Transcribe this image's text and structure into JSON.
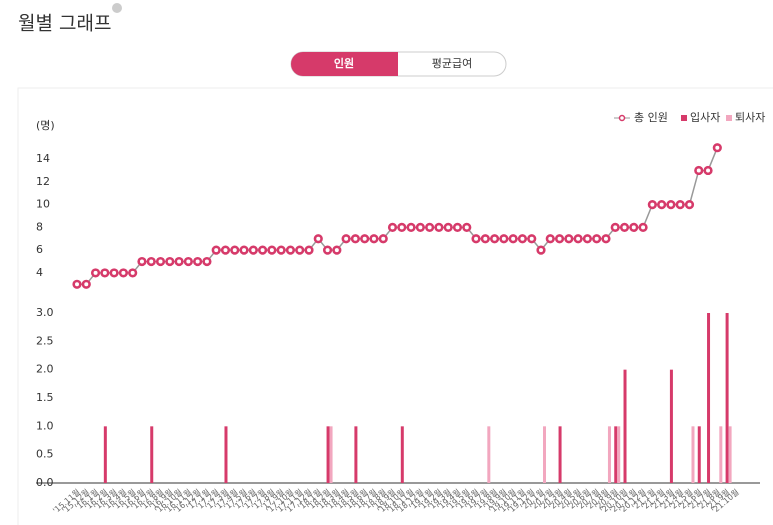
{
  "header": {
    "title": "월별 그래프"
  },
  "tabs": [
    "인원",
    "평균급여"
  ],
  "chart_data": [
    {
      "type": "line",
      "y_label": "(명)",
      "series": [
        {
          "name": "총 인원",
          "color": "#d63a6a",
          "line_color": "#999999",
          "values": [
            3,
            3,
            4,
            4,
            4,
            4,
            4,
            5,
            5,
            5,
            5,
            5,
            5,
            5,
            5,
            6,
            6,
            6,
            6,
            6,
            6,
            6,
            6,
            6,
            6,
            6,
            7,
            6,
            6,
            7,
            7,
            7,
            7,
            7,
            8,
            8,
            8,
            8,
            8,
            8,
            8,
            8,
            8,
            7,
            7,
            7,
            7,
            7,
            7,
            7,
            6,
            7,
            7,
            7,
            7,
            7,
            7,
            7,
            8,
            8,
            8,
            8,
            10,
            10,
            10,
            10,
            10,
            13,
            13,
            15
          ]
        }
      ],
      "ylim": [
        2.5,
        15.5
      ],
      "yticks": [
        4,
        6,
        8,
        10,
        12,
        14
      ]
    },
    {
      "type": "bar",
      "categories": [
        "'15.11월",
        "'15.12월",
        "'16.1월",
        "'16.2월",
        "'16.3월",
        "'16.4월",
        "'16.5월",
        "'16.6월",
        "'16.7월",
        "'16.8월",
        "'16.9월",
        "'16.10월",
        "'16.11월",
        "'16.12월",
        "'17.1월",
        "'17.2월",
        "'17.3월",
        "'17.4월",
        "'17.5월",
        "'17.6월",
        "'17.7월",
        "'17.8월",
        "'17.9월",
        "'17.10월",
        "'17.11월",
        "'17.12월",
        "'18.1월",
        "'18.2월",
        "'18.3월",
        "'18.4월",
        "'18.5월",
        "'18.6월",
        "'18.7월",
        "'18.8월",
        "'18.9월",
        "'18.10월",
        "'18.11월",
        "'18.12월",
        "'19.1월",
        "'19.2월",
        "'19.3월",
        "'19.4월",
        "'19.5월",
        "'19.6월",
        "'19.7월",
        "'19.8월",
        "'19.9월",
        "'19.10월",
        "'19.11월",
        "'19.12월",
        "'20.1월",
        "'20.2월",
        "'20.3월",
        "'20.4월",
        "'20.5월",
        "'20.6월",
        "'20.7월",
        "'20.8월",
        "'20.9월",
        "'20.10월",
        "'20.11월",
        "'20.12월",
        "'21.1월",
        "'21.2월",
        "'21.3월",
        "'21.4월",
        "'21.5월",
        "'21.6월",
        "'21.7월",
        "'21.8월",
        "'21.9월",
        "'21.10월"
      ],
      "series": [
        {
          "name": "입사자",
          "color": "#d63a6a",
          "values": [
            0,
            0,
            0,
            1,
            0,
            0,
            0,
            0,
            1,
            0,
            0,
            0,
            0,
            0,
            0,
            0,
            1,
            0,
            0,
            0,
            0,
            0,
            0,
            0,
            0,
            0,
            0,
            1,
            0,
            0,
            1,
            0,
            0,
            0,
            0,
            1,
            0,
            0,
            0,
            0,
            0,
            0,
            0,
            0,
            0,
            0,
            0,
            0,
            0,
            0,
            0,
            0,
            1,
            0,
            0,
            0,
            0,
            0,
            1,
            2,
            0,
            0,
            0,
            0,
            2,
            0,
            0,
            1,
            3,
            0,
            3,
            0
          ]
        },
        {
          "name": "퇴사자",
          "color": "#f2a7bf",
          "values": [
            0,
            0,
            0,
            0,
            0,
            0,
            0,
            0,
            0,
            0,
            0,
            0,
            0,
            0,
            0,
            0,
            0,
            0,
            0,
            0,
            0,
            0,
            0,
            0,
            0,
            0,
            0,
            1,
            0,
            0,
            0,
            0,
            0,
            0,
            0,
            0,
            0,
            0,
            0,
            0,
            0,
            0,
            0,
            0,
            1,
            0,
            0,
            0,
            0,
            0,
            1,
            0,
            0,
            0,
            0,
            0,
            0,
            1,
            1,
            0,
            0,
            0,
            0,
            0,
            0,
            0,
            1,
            0,
            0,
            1,
            1,
            0
          ]
        }
      ],
      "ylim": [
        0,
        3
      ],
      "yticks": [
        {
          "value": 0,
          "label": "0.0"
        },
        {
          "value": 0.5,
          "label": "0.5"
        },
        {
          "value": 1,
          "label": "1.0"
        },
        {
          "value": 1.5,
          "label": "1.5"
        },
        {
          "value": 2,
          "label": "2.0"
        },
        {
          "value": 2.5,
          "label": "2.5"
        },
        {
          "value": 3,
          "label": "3.0"
        }
      ]
    }
  ]
}
